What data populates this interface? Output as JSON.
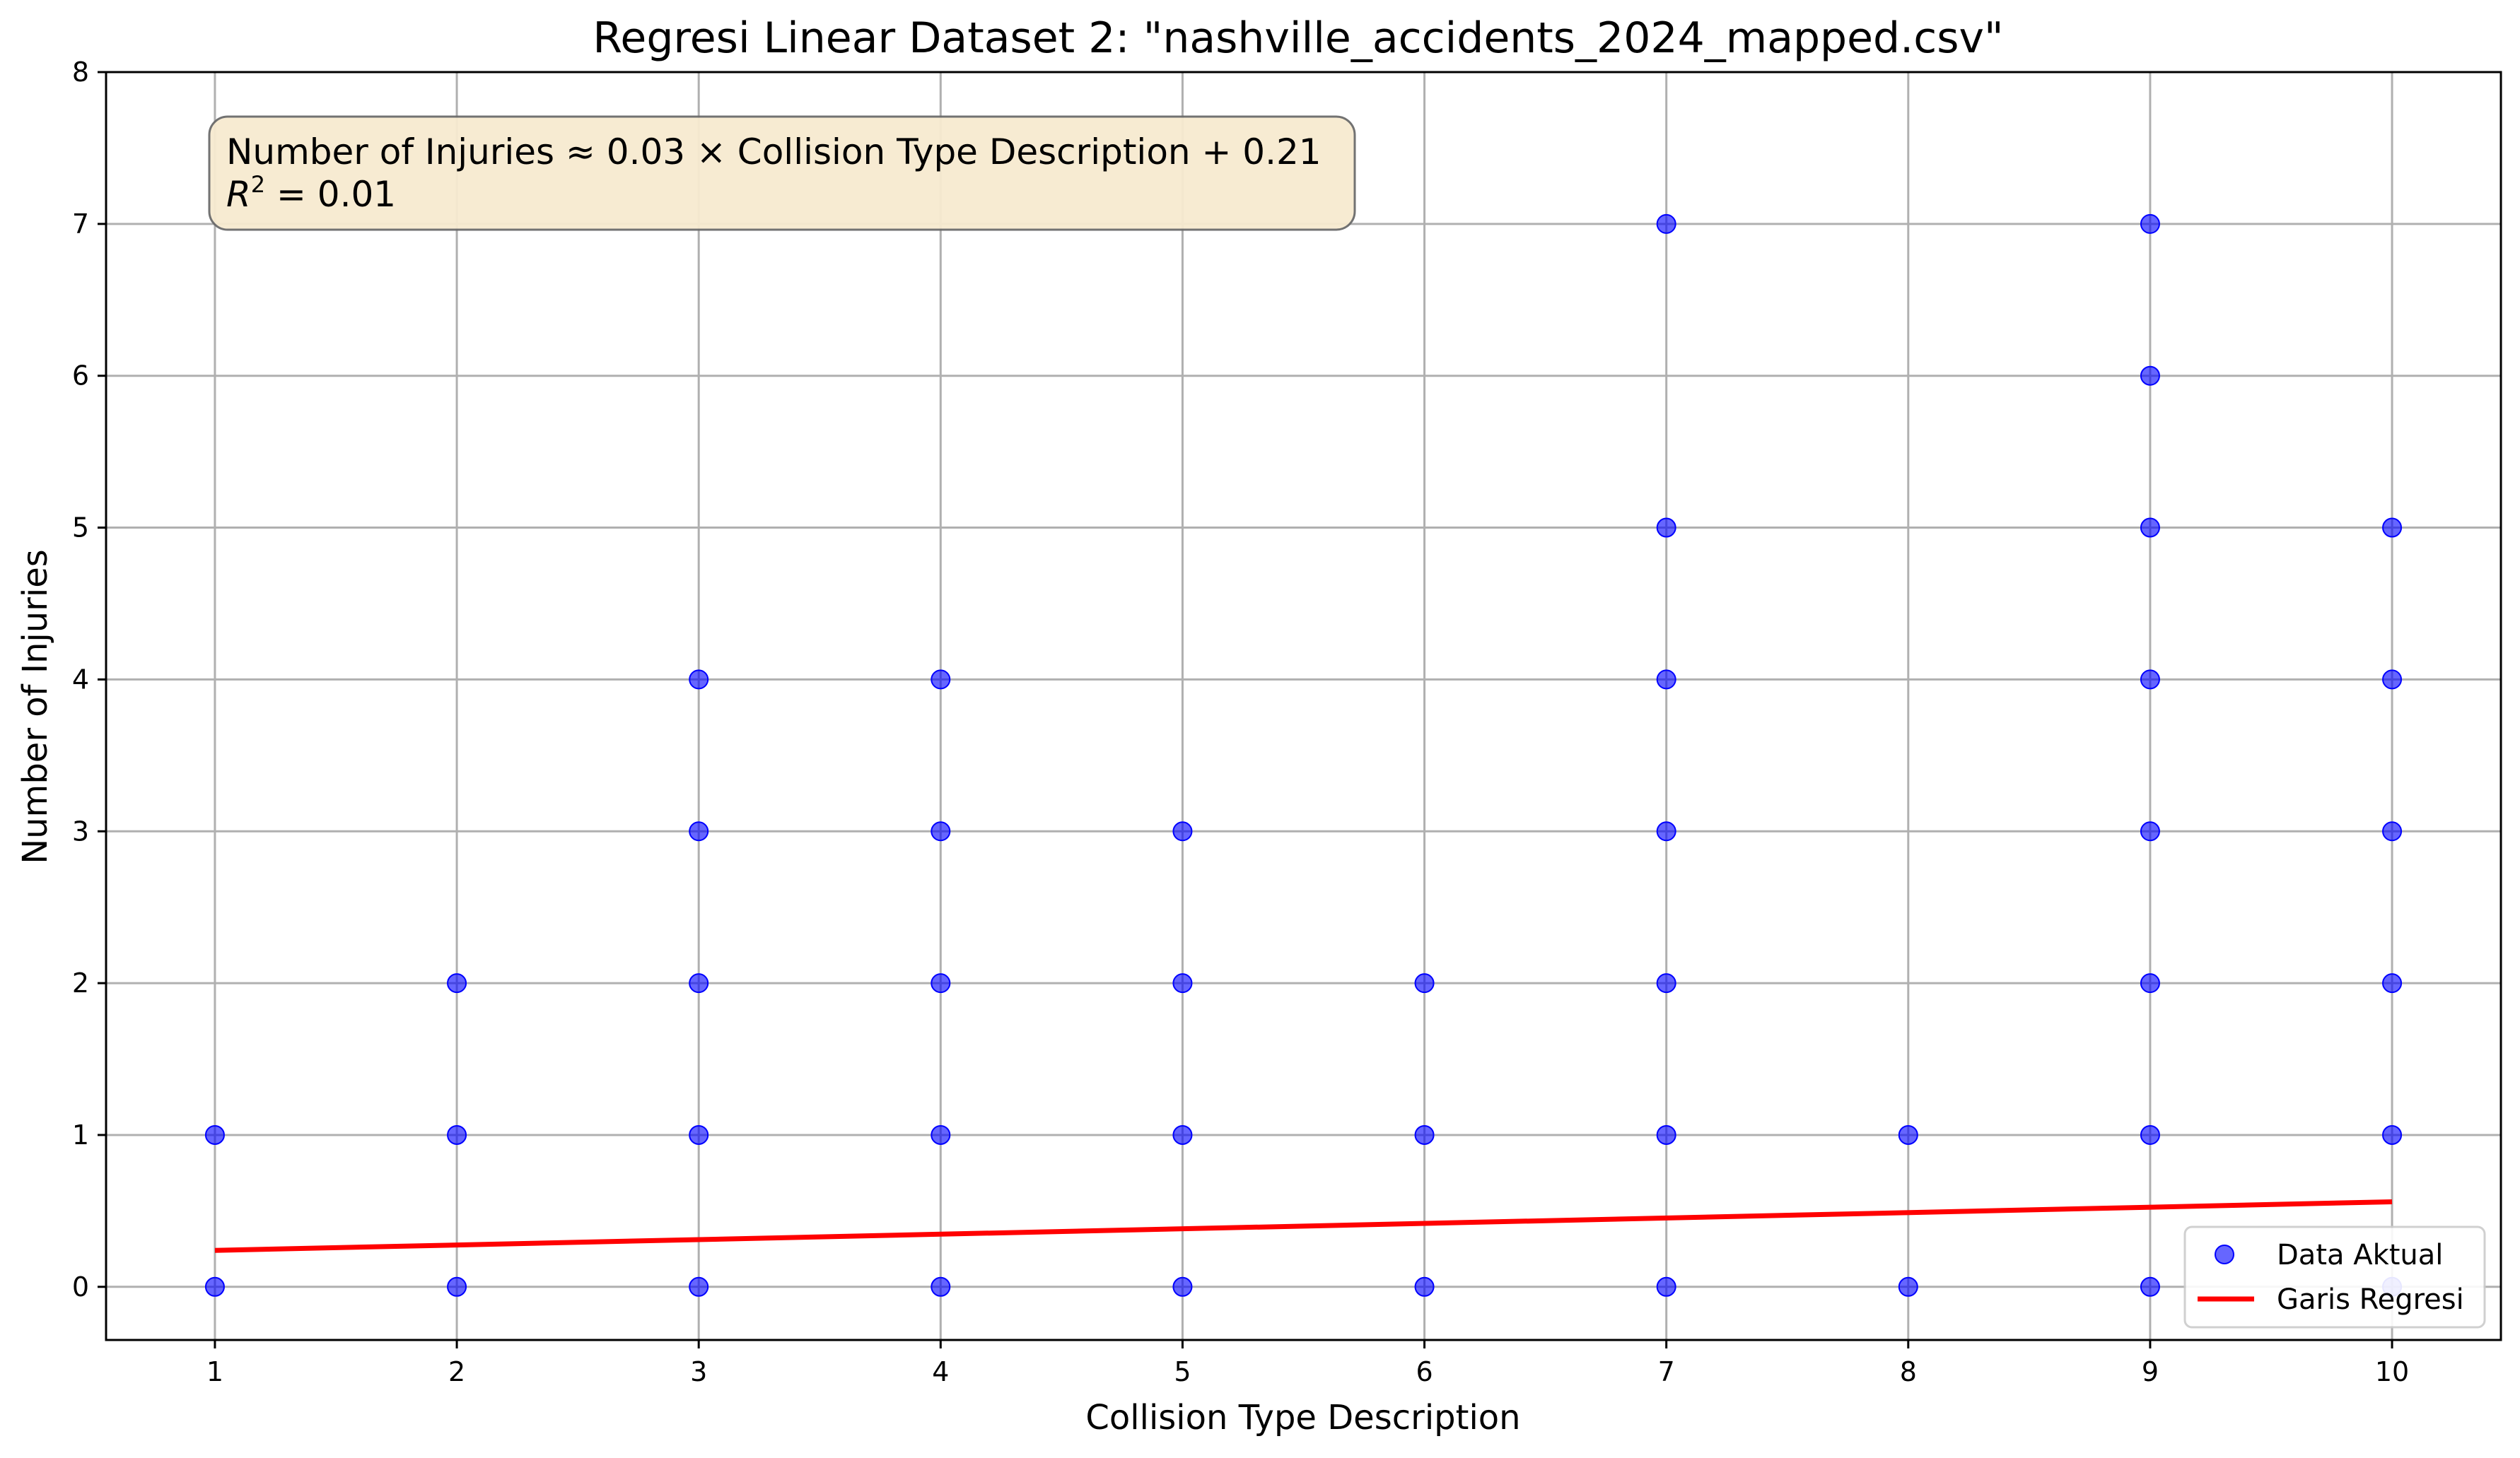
{
  "chart_data": {
    "type": "scatter",
    "title": "Regresi Linear Dataset 2: \"nashville_accidents_2024_mapped.csv\"",
    "xlabel": "Collision Type Description",
    "ylabel": "Number of Injuries",
    "xlim": [
      0.55,
      10.45
    ],
    "ylim": [
      -0.35,
      8
    ],
    "xticks": [
      1,
      2,
      3,
      4,
      5,
      6,
      7,
      8,
      9,
      10
    ],
    "yticks": [
      0,
      1,
      2,
      3,
      4,
      5,
      6,
      7,
      8
    ],
    "grid": true,
    "legend_position": "lower-right",
    "series": [
      {
        "name": "Data Aktual",
        "kind": "scatter",
        "color": "#0000ff",
        "points": [
          [
            1,
            0
          ],
          [
            1,
            1
          ],
          [
            2,
            0
          ],
          [
            2,
            1
          ],
          [
            2,
            2
          ],
          [
            3,
            0
          ],
          [
            3,
            1
          ],
          [
            3,
            2
          ],
          [
            3,
            3
          ],
          [
            3,
            4
          ],
          [
            4,
            0
          ],
          [
            4,
            1
          ],
          [
            4,
            2
          ],
          [
            4,
            3
          ],
          [
            4,
            4
          ],
          [
            5,
            0
          ],
          [
            5,
            1
          ],
          [
            5,
            2
          ],
          [
            5,
            3
          ],
          [
            6,
            0
          ],
          [
            6,
            1
          ],
          [
            6,
            2
          ],
          [
            7,
            0
          ],
          [
            7,
            1
          ],
          [
            7,
            2
          ],
          [
            7,
            3
          ],
          [
            7,
            4
          ],
          [
            7,
            5
          ],
          [
            7,
            7
          ],
          [
            8,
            0
          ],
          [
            8,
            1
          ],
          [
            9,
            0
          ],
          [
            9,
            1
          ],
          [
            9,
            2
          ],
          [
            9,
            3
          ],
          [
            9,
            4
          ],
          [
            9,
            5
          ],
          [
            9,
            6
          ],
          [
            9,
            7
          ],
          [
            10,
            0
          ],
          [
            10,
            1
          ],
          [
            10,
            2
          ],
          [
            10,
            3
          ],
          [
            10,
            4
          ],
          [
            10,
            5
          ]
        ]
      },
      {
        "name": "Garis Regresi",
        "kind": "line",
        "color": "#ff0000",
        "points": [
          [
            1,
            0.24
          ],
          [
            10,
            0.56
          ]
        ]
      }
    ],
    "annotation": {
      "line1": "Number of Injuries ≈ 0.03 × Collision Type Description + 0.21",
      "line2_prefix": "R",
      "line2_superscript": "2",
      "line2_suffix": " = 0.01"
    }
  }
}
